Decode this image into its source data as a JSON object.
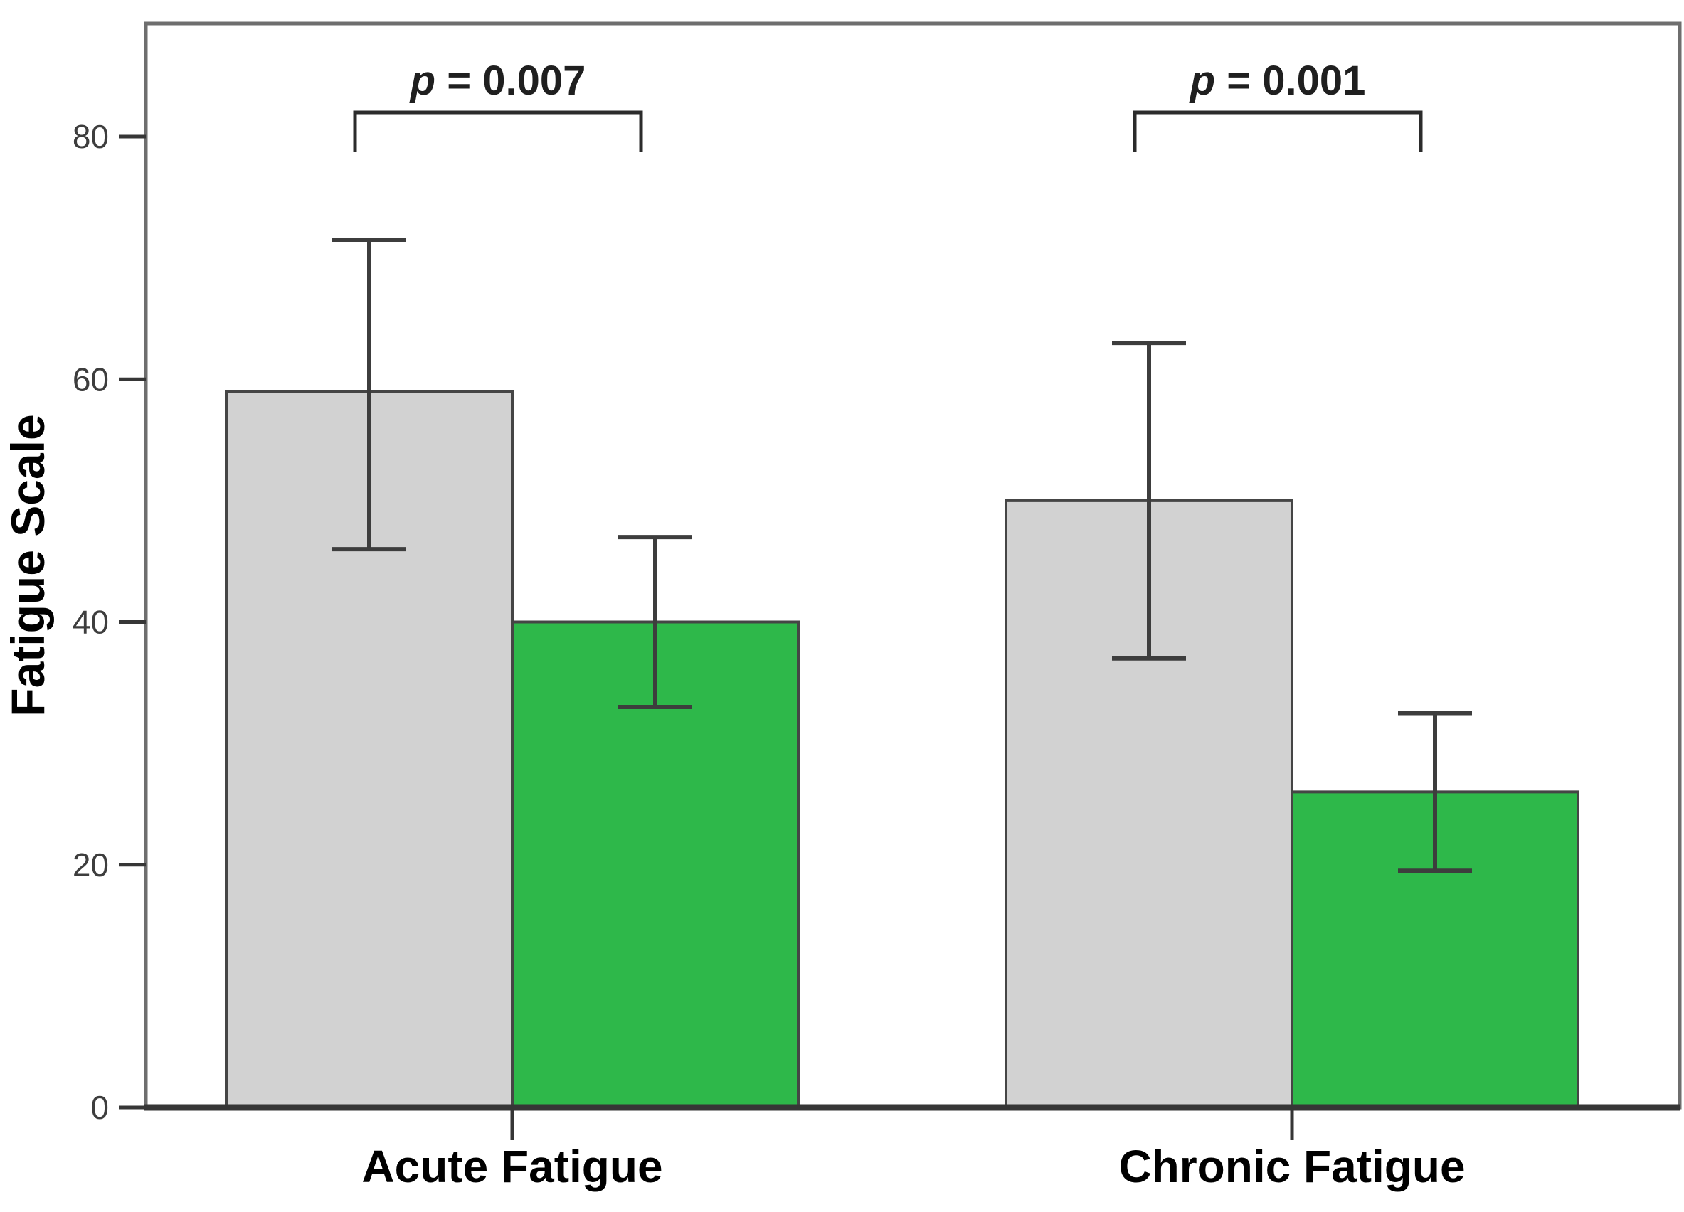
{
  "figure": {
    "background": "#ffffff"
  },
  "colors": {
    "frame": "#6e6e6e",
    "axis": "#363636",
    "tick": "#363636",
    "error_bar": "#3d3d3d",
    "bar_outline": "#454545",
    "bracket": "#2b2b2b"
  },
  "chart_data": {
    "type": "bar",
    "title": "",
    "xlabel": "",
    "ylabel": "Fatigue Scale",
    "ylim": [
      0,
      88
    ],
    "yticks": [
      0,
      20,
      40,
      60,
      80
    ],
    "grid": false,
    "legend": "none",
    "categories": [
      "Acute Fatigue",
      "Chronic Fatigue"
    ],
    "series": [
      {
        "name": "gray bars",
        "color": "#d2d2d2",
        "values": [
          59,
          50
        ],
        "error_low": [
          46,
          37
        ],
        "error_high": [
          71.5,
          63
        ]
      },
      {
        "name": "green bars",
        "color": "#2eb84a",
        "values": [
          40,
          26
        ],
        "error_low": [
          33,
          19.5
        ],
        "error_high": [
          47,
          32.5
        ]
      }
    ],
    "annotations": [
      {
        "category": "Acute Fatigue",
        "p_symbol": "p",
        "p_text": " = 0.007"
      },
      {
        "category": "Chronic Fatigue",
        "p_symbol": "p",
        "p_text": " = 0.001"
      }
    ]
  }
}
